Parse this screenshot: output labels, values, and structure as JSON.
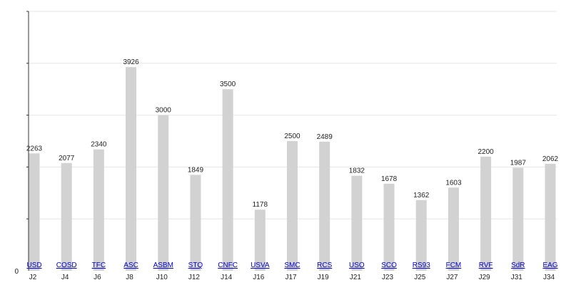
{
  "colors": {
    "bar": "#d2d2d2",
    "grid": "#e6e6e6",
    "axis": "#333333",
    "link": "#0000cc",
    "text": "#222222"
  },
  "chart_data": {
    "type": "bar",
    "title": "",
    "xlabel": "",
    "ylabel": "",
    "ylim": [
      0,
      5000
    ],
    "y_tick_labels": [
      "0"
    ],
    "grid": true,
    "legend": "none",
    "categories": [
      "J2",
      "J4",
      "J6",
      "J8",
      "J10",
      "J12",
      "J14",
      "J16",
      "J17",
      "J19",
      "J21",
      "J23",
      "J25",
      "J27",
      "J29",
      "J31",
      "J34"
    ],
    "bar_links": [
      "USD",
      "COSD",
      "TFC",
      "ASC",
      "ASBM",
      "STQ",
      "CNFC",
      "USVA",
      "SMC",
      "RCS",
      "USO",
      "SCO",
      "RS93",
      "FCM",
      "RVF",
      "SdR",
      "EAG"
    ],
    "values": [
      2263,
      2077,
      2340,
      3926,
      3000,
      1849,
      3500,
      1178,
      2500,
      2489,
      1832,
      1678,
      1362,
      1603,
      2200,
      1987,
      2062
    ]
  }
}
